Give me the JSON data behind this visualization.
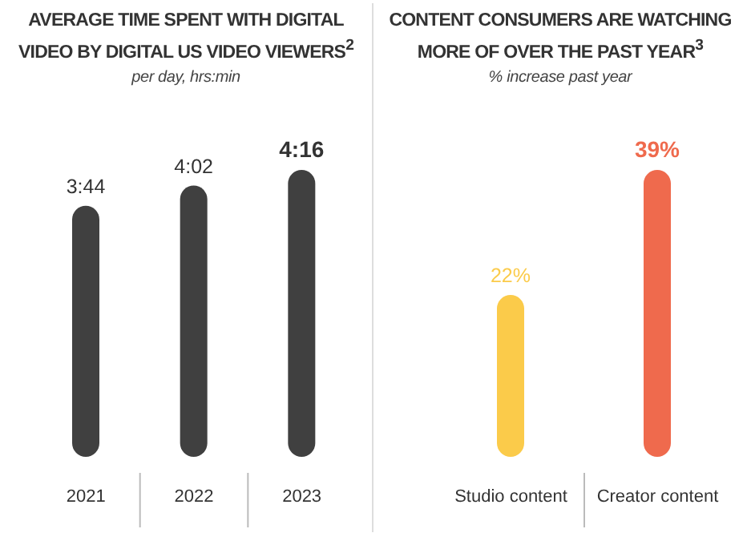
{
  "chart_data": [
    {
      "type": "bar",
      "title": "AVERAGE TIME SPENT WITH DIGITAL VIDEO BY DIGITAL US VIDEO VIEWERS$^{2}$",
      "subtitle": "per day, hrs:min",
      "categories": [
        "2021",
        "2022",
        "2023"
      ],
      "values": [
        224,
        242,
        256
      ],
      "value_labels": [
        "3:44",
        "4:02",
        "4:16"
      ],
      "color": "#404040",
      "grid": false,
      "legend": false
    },
    {
      "type": "bar",
      "title": "CONTENT CONSUMERS ARE WATCHING MORE OF OVER THE PAST YEAR$^{3}$",
      "subtitle": "% increase past year",
      "categories": [
        "Studio content",
        "Creator content"
      ],
      "values": [
        22,
        39
      ],
      "value_labels": [
        "22%",
        "39%"
      ],
      "colors": [
        "#fbcb4a",
        "#ef6a4d"
      ],
      "grid": false,
      "legend": false
    }
  ]
}
